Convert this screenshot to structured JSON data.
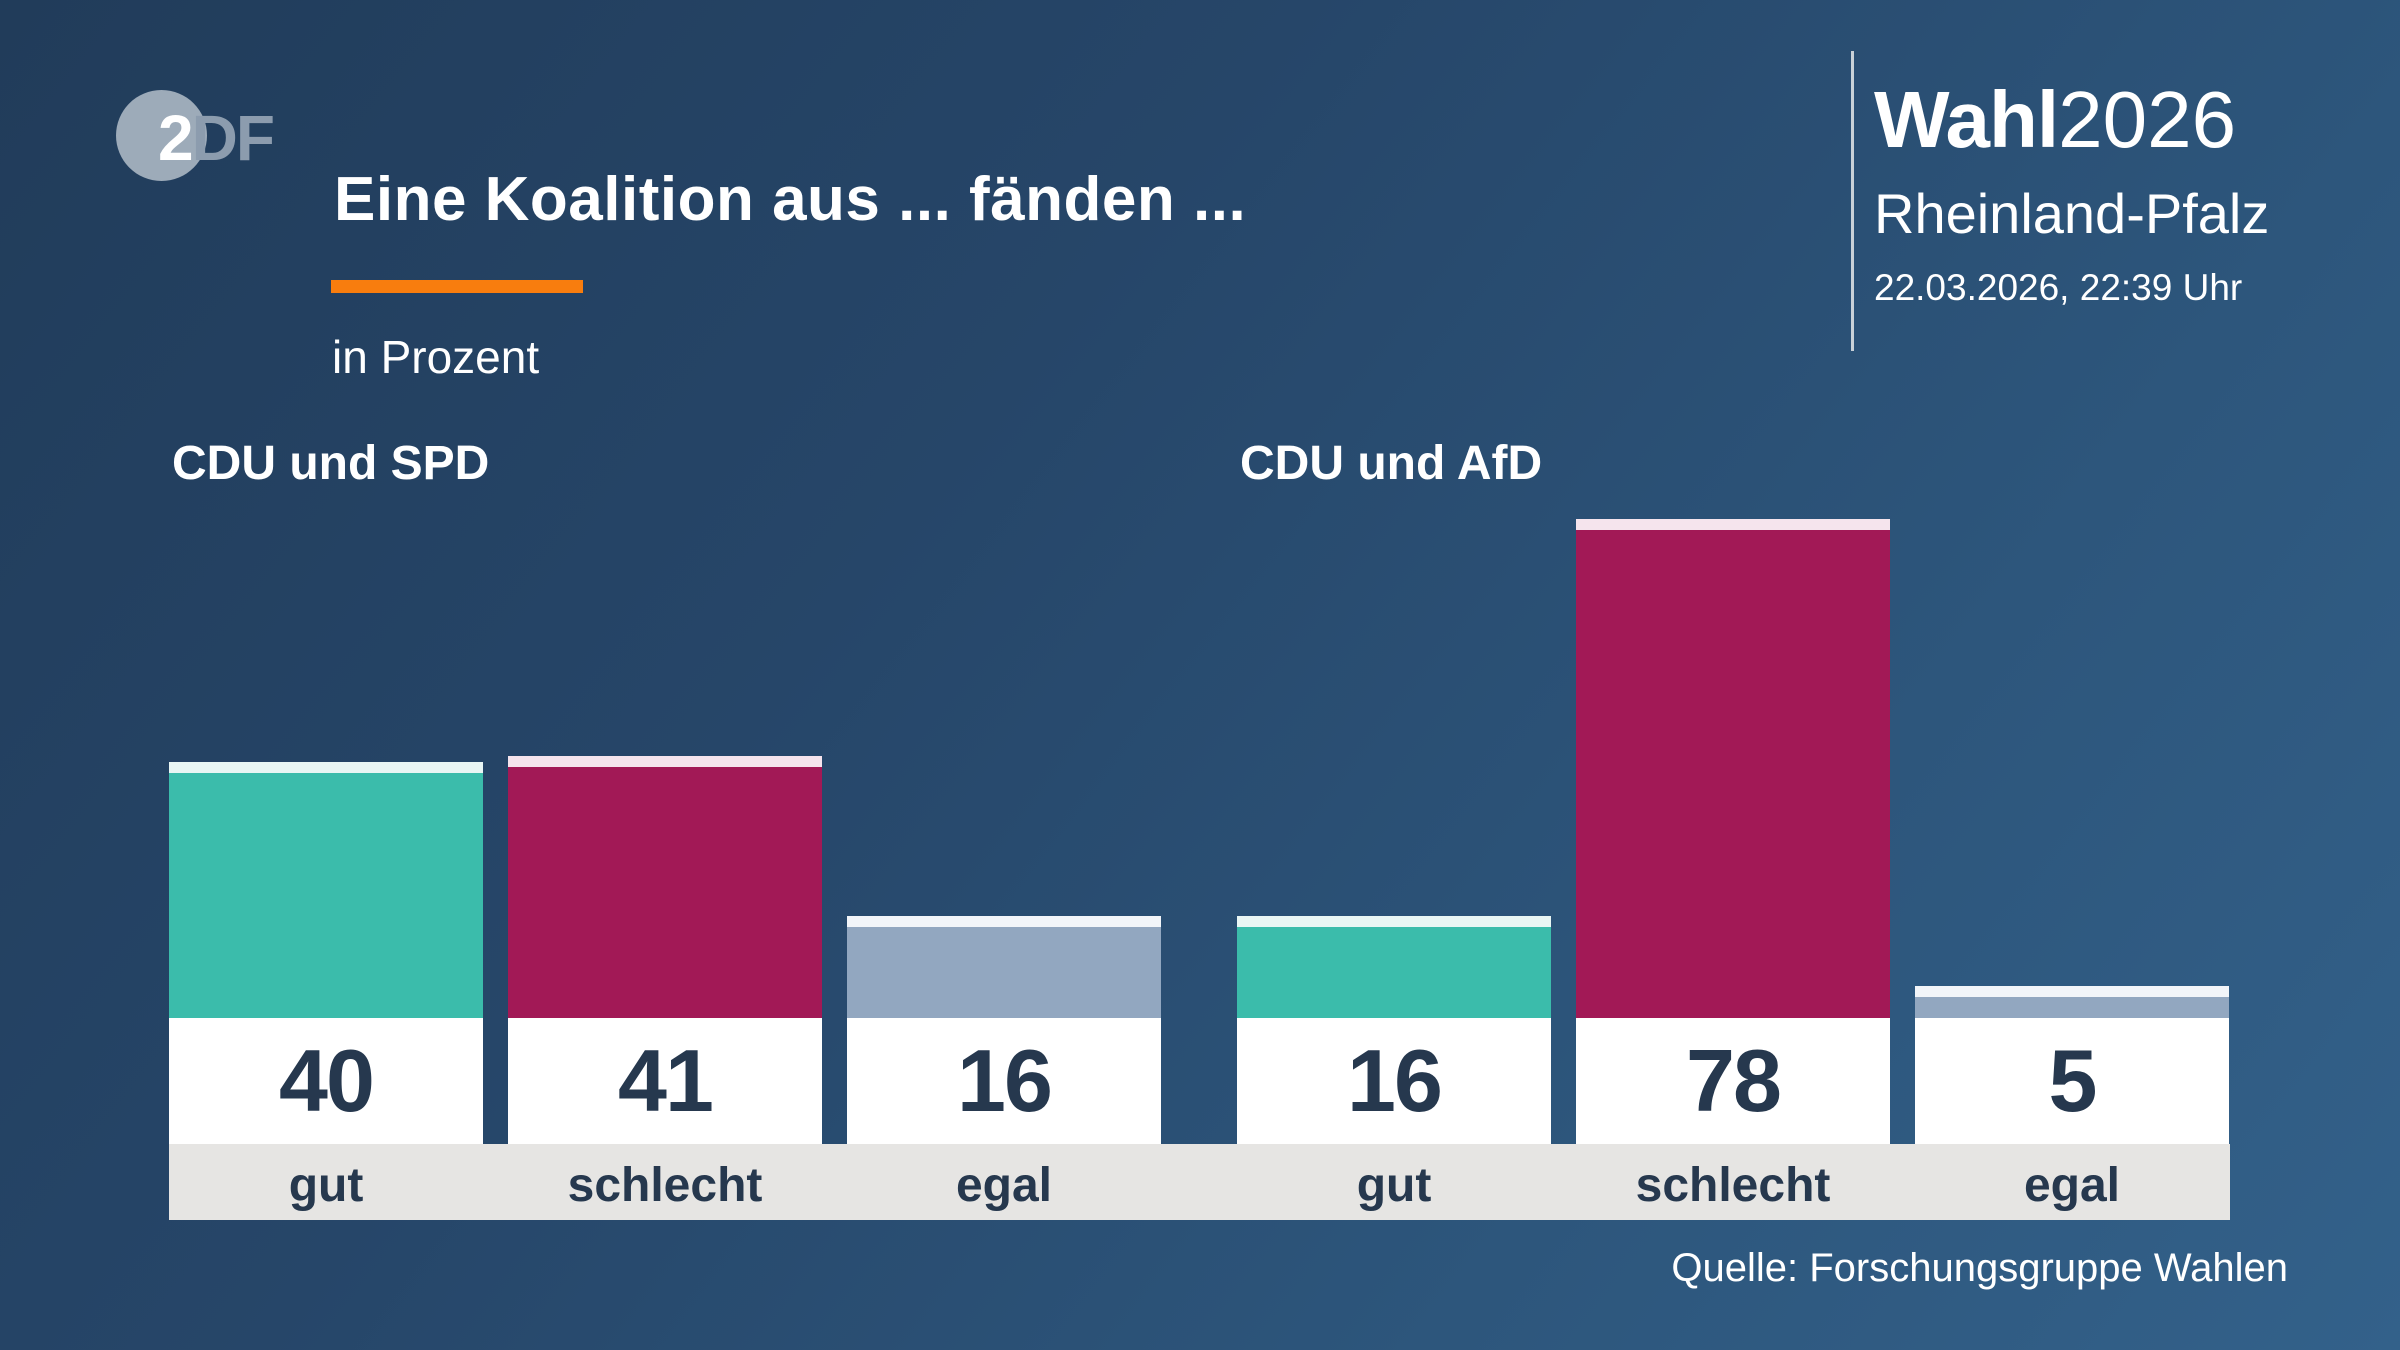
{
  "header": {
    "logo": {
      "part1": "2",
      "part2": "DF"
    },
    "title": "Eine Koalition aus ... fänden ...",
    "subtitle": "in Prozent"
  },
  "brand": {
    "name_bold": "Wahl",
    "name_year": "2026",
    "region": "Rheinland-Pfalz",
    "timestamp": "22.03.2026, 22:39 Uhr"
  },
  "source": "Quelle: Forschungsgruppe Wahlen",
  "colors": {
    "accent_orange": "#f87d0e",
    "bar_good": "#3bbcab",
    "bar_good_cap": "#e9f6f4",
    "bar_bad": "#a21956",
    "bar_bad_cap": "#f5e4ed",
    "bar_neutral": "#92a7c0",
    "bar_neutral_cap": "#f2f5f9",
    "value_text": "#26384e",
    "band_background": "#e6e5e3"
  },
  "chart_data": {
    "type": "bar",
    "unit": "Prozent",
    "ylim": [
      0,
      100
    ],
    "grid": false,
    "legend": "none",
    "groups": [
      {
        "label": "CDU und SPD",
        "categories": [
          "gut",
          "schlecht",
          "egal"
        ],
        "values": [
          40,
          41,
          16
        ],
        "color_keys": [
          "bar_good",
          "bar_bad",
          "bar_neutral"
        ]
      },
      {
        "label": "CDU und AfD",
        "categories": [
          "gut",
          "schlecht",
          "egal"
        ],
        "values": [
          16,
          78,
          5
        ],
        "color_keys": [
          "bar_good",
          "bar_bad",
          "bar_neutral"
        ]
      }
    ]
  }
}
